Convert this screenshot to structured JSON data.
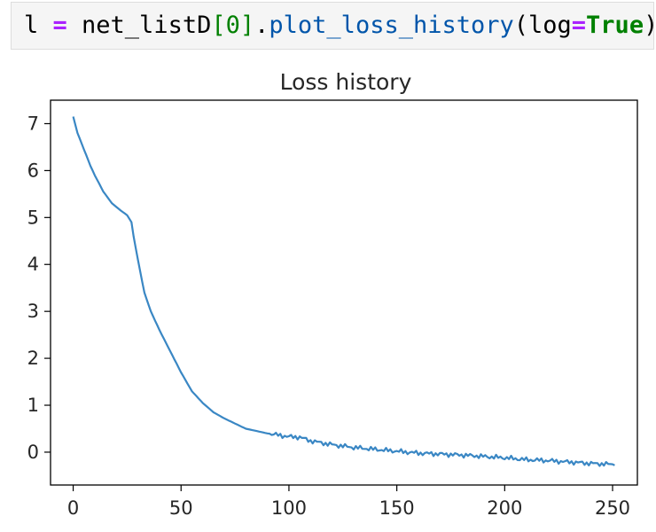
{
  "code_cell": {
    "tokens": [
      {
        "text": "l ",
        "cls": ""
      },
      {
        "text": "=",
        "cls": "tok-op"
      },
      {
        "text": " net_listD",
        "cls": ""
      },
      {
        "text": "[",
        "cls": "tok-bracket"
      },
      {
        "text": "0",
        "cls": "tok-num"
      },
      {
        "text": "]",
        "cls": "tok-bracket"
      },
      {
        "text": ".",
        "cls": ""
      },
      {
        "text": "plot_loss_history",
        "cls": "tok-fn"
      },
      {
        "text": "(log",
        "cls": ""
      },
      {
        "text": "=",
        "cls": "tok-op"
      },
      {
        "text": "True",
        "cls": "tok-kw"
      },
      {
        "text": ")",
        "cls": ""
      }
    ]
  },
  "chart_data": {
    "type": "line",
    "title": "Loss history",
    "xlabel": "",
    "ylabel": "",
    "xlim": [
      -10.5,
      261.5
    ],
    "ylim": [
      -0.7,
      7.5
    ],
    "xticks": [
      0,
      50,
      100,
      150,
      200,
      250
    ],
    "yticks": [
      0,
      1,
      2,
      3,
      4,
      5,
      6,
      7
    ],
    "grid": false,
    "line_color": "#3a87c4",
    "series": [
      {
        "x": [
          0,
          2,
          5,
          8,
          10,
          14,
          18,
          22,
          25,
          27,
          28,
          30,
          33,
          36,
          40,
          45,
          50,
          55,
          60,
          65,
          70,
          80,
          90,
          100,
          105,
          110,
          120,
          130,
          140,
          150,
          160,
          170,
          180,
          190,
          200,
          210,
          220,
          230,
          240,
          250,
          251
        ],
        "y": [
          7.15,
          6.8,
          6.45,
          6.1,
          5.9,
          5.55,
          5.3,
          5.15,
          5.05,
          4.9,
          4.6,
          4.1,
          3.4,
          3.0,
          2.6,
          2.15,
          1.7,
          1.3,
          1.05,
          0.85,
          0.72,
          0.5,
          0.4,
          0.33,
          0.32,
          0.24,
          0.16,
          0.1,
          0.06,
          0.02,
          -0.02,
          -0.04,
          -0.06,
          -0.09,
          -0.12,
          -0.16,
          -0.18,
          -0.21,
          -0.24,
          -0.26,
          -0.28
        ]
      }
    ]
  }
}
